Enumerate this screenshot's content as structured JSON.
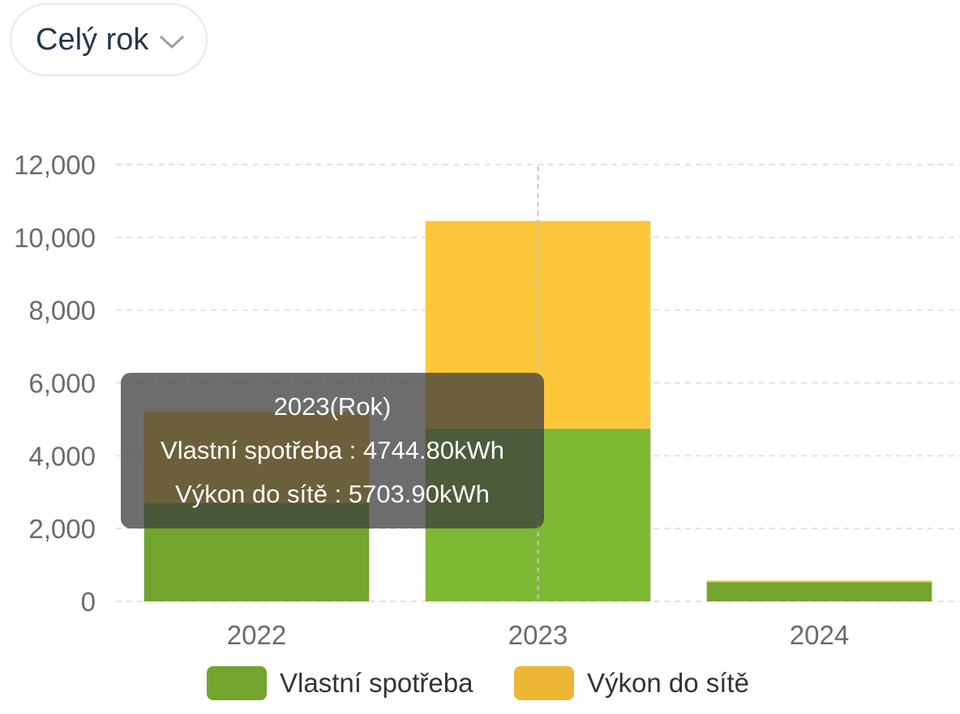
{
  "period_select": {
    "label": "Celý rok",
    "icon": "chevron-down-icon"
  },
  "colors": {
    "self": "#72a42e",
    "self_highlight": "#7fb834",
    "grid_feed": "#fcc63a",
    "legend_feed": "#ebb735",
    "axis_text": "#6b6b6b",
    "gridline": "#e2e2e2"
  },
  "chart_data": {
    "type": "bar",
    "stacked": true,
    "categories": [
      "2022",
      "2023",
      "2024"
    ],
    "series": [
      {
        "name": "Vlastní spotřeba",
        "values": [
          2700,
          4744.8,
          530
        ]
      },
      {
        "name": "Výkon do sítě",
        "values": [
          2500,
          5703.9,
          40
        ]
      }
    ],
    "ylim": [
      0,
      12000
    ],
    "yticks": [
      "0",
      "2,000",
      "4,000",
      "6,000",
      "8,000",
      "10,000",
      "12,000"
    ],
    "grid": true,
    "legend_position": "bottom",
    "highlighted_category": "2023"
  },
  "tooltip": {
    "title": "2023(Rok)",
    "line1": "Vlastní spotřeba : 4744.80kWh",
    "line2": "Výkon do sítě : 5703.90kWh"
  },
  "legend": [
    {
      "label": "Vlastní spotřeba"
    },
    {
      "label": "Výkon do sítě"
    }
  ]
}
